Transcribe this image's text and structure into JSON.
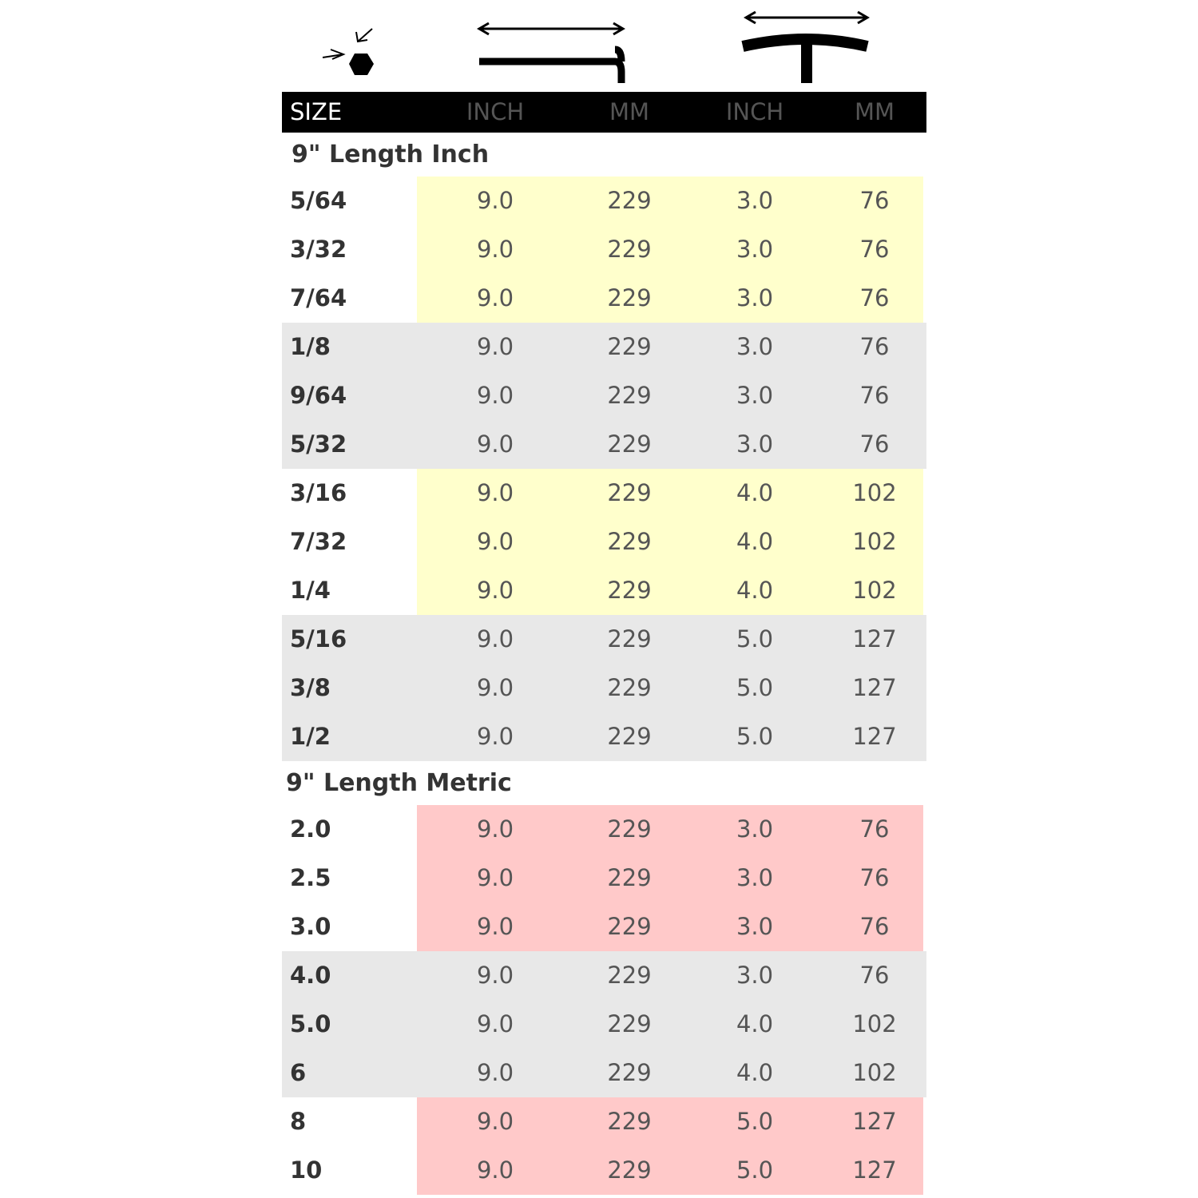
{
  "header": {
    "columns": [
      "SIZE",
      "INCH",
      "MM",
      "INCH",
      "MM"
    ]
  },
  "sections": [
    {
      "title": "9\" Length Inch",
      "groups": [
        [
          [
            "5/64",
            "9.0",
            "229",
            "3.0",
            "76"
          ],
          [
            "3/32",
            "9.0",
            "229",
            "3.0",
            "76"
          ],
          [
            "7/64",
            "9.0",
            "229",
            "3.0",
            "76"
          ]
        ],
        [
          [
            "1/8",
            "9.0",
            "229",
            "3.0",
            "76"
          ],
          [
            "9/64",
            "9.0",
            "229",
            "3.0",
            "76"
          ],
          [
            "5/32",
            "9.0",
            "229",
            "3.0",
            "76"
          ]
        ],
        [
          [
            "3/16",
            "9.0",
            "229",
            "4.0",
            "102"
          ],
          [
            "7/32",
            "9.0",
            "229",
            "4.0",
            "102"
          ],
          [
            "1/4",
            "9.0",
            "229",
            "4.0",
            "102"
          ]
        ],
        [
          [
            "5/16",
            "9.0",
            "229",
            "5.0",
            "127"
          ],
          [
            "3/8",
            "9.0",
            "229",
            "5.0",
            "127"
          ],
          [
            "1/2",
            "9.0",
            "229",
            "5.0",
            "127"
          ]
        ]
      ]
    },
    {
      "title": "9\" Length Metric",
      "groups": [
        [
          [
            "2.0",
            "9.0",
            "229",
            "3.0",
            "76"
          ],
          [
            "2.5",
            "9.0",
            "229",
            "3.0",
            "76"
          ],
          [
            "3.0",
            "9.0",
            "229",
            "3.0",
            "76"
          ]
        ],
        [
          [
            "4.0",
            "9.0",
            "229",
            "3.0",
            "76"
          ],
          [
            "5.0",
            "9.0",
            "229",
            "4.0",
            "102"
          ],
          [
            "6",
            "9.0",
            "229",
            "4.0",
            "102"
          ]
        ],
        [
          [
            "8",
            "9.0",
            "229",
            "5.0",
            "127"
          ],
          [
            "10",
            "9.0",
            "229",
            "5.0",
            "127"
          ]
        ]
      ]
    }
  ]
}
